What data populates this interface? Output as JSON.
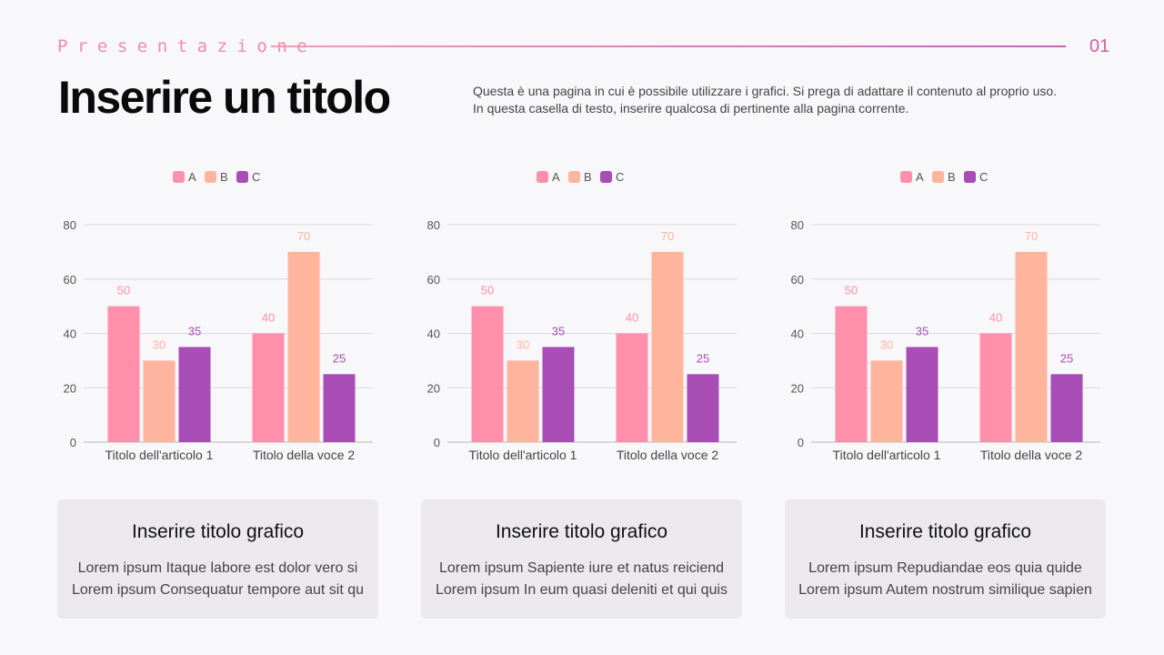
{
  "header": {
    "kicker": "Presentazione",
    "page_number": "01",
    "title": "Inserire un titolo",
    "description": [
      "Questa è una pagina in cui è possibile utilizzare i grafici. Si prega di adattare il contenuto al proprio uso.",
      "In questa casella di testo, inserire qualcosa di pertinente alla pagina corrente."
    ]
  },
  "colors": {
    "A": "#ff8fab",
    "B": "#ffb49d",
    "C": "#a84db6",
    "accent": "#f28aab"
  },
  "chart_data": [
    {
      "type": "bar",
      "categories": [
        "Titolo dell'articolo 1",
        "Titolo della voce 2"
      ],
      "series": [
        {
          "name": "A",
          "values": [
            50,
            40
          ]
        },
        {
          "name": "B",
          "values": [
            30,
            70
          ]
        },
        {
          "name": "C",
          "values": [
            35,
            25
          ]
        }
      ],
      "ylim": [
        0,
        80
      ],
      "yticks": [
        0,
        20,
        40,
        60,
        80
      ],
      "grid": true,
      "legend": "top"
    },
    {
      "type": "bar",
      "categories": [
        "Titolo dell'articolo 1",
        "Titolo della voce 2"
      ],
      "series": [
        {
          "name": "A",
          "values": [
            50,
            40
          ]
        },
        {
          "name": "B",
          "values": [
            30,
            70
          ]
        },
        {
          "name": "C",
          "values": [
            35,
            25
          ]
        }
      ],
      "ylim": [
        0,
        80
      ],
      "yticks": [
        0,
        20,
        40,
        60,
        80
      ],
      "grid": true,
      "legend": "top"
    },
    {
      "type": "bar",
      "categories": [
        "Titolo dell'articolo 1",
        "Titolo della voce 2"
      ],
      "series": [
        {
          "name": "A",
          "values": [
            50,
            40
          ]
        },
        {
          "name": "B",
          "values": [
            30,
            70
          ]
        },
        {
          "name": "C",
          "values": [
            35,
            25
          ]
        }
      ],
      "ylim": [
        0,
        80
      ],
      "yticks": [
        0,
        20,
        40,
        60,
        80
      ],
      "grid": true,
      "legend": "top"
    }
  ],
  "cards": [
    {
      "title": "Inserire titolo grafico",
      "lines": [
        "Lorem ipsum Itaque labore est dolor vero si",
        "Lorem ipsum Consequatur tempore aut sit qu"
      ]
    },
    {
      "title": "Inserire titolo grafico",
      "lines": [
        "Lorem ipsum Sapiente iure et natus reiciend",
        "Lorem ipsum In eum quasi deleniti et qui quis"
      ]
    },
    {
      "title": "Inserire titolo grafico",
      "lines": [
        "Lorem ipsum Repudiandae eos quia quide",
        "Lorem ipsum Autem nostrum similique sapien"
      ]
    }
  ]
}
